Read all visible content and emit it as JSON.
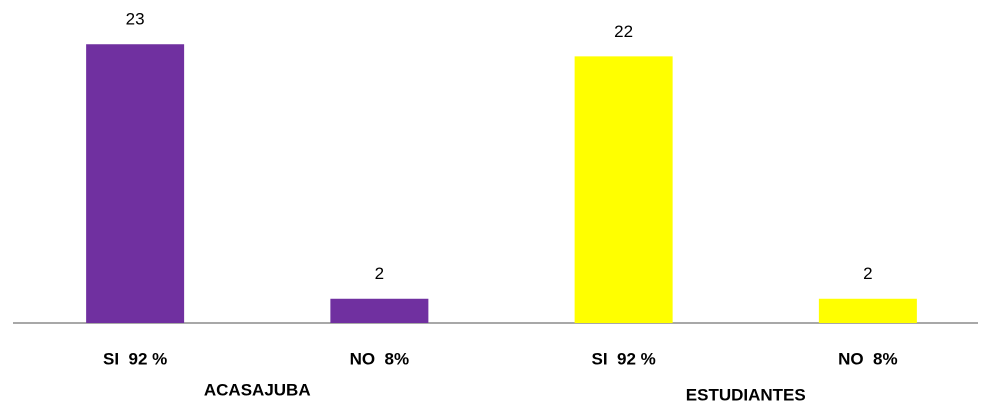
{
  "chart_data": {
    "type": "bar",
    "categories": [
      "SI  92 %",
      "NO  8%",
      "SI  92 %",
      "NO  8%"
    ],
    "values": [
      23,
      2,
      22,
      2
    ],
    "colors": [
      "#7030a0",
      "#7030a0",
      "#ffff00",
      "#ffff00"
    ],
    "group_labels": [
      "ACASAJUBA",
      "ESTUDIANTES"
    ],
    "ylim": [
      0,
      25
    ]
  }
}
